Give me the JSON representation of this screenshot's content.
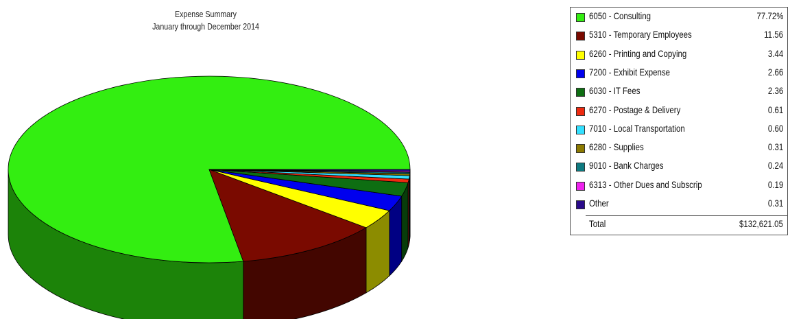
{
  "chart_data": {
    "type": "pie",
    "title": "Expense Summary",
    "subtitle": "January through December 2014",
    "slices": [
      {
        "label": "6050 - Consulting",
        "value_text": "77.72%",
        "value": 77.72,
        "color": "#33ee11"
      },
      {
        "label": "5310 - Temporary Employees",
        "value_text": "11.56",
        "value": 11.56,
        "color": "#7a0a00"
      },
      {
        "label": "6260 - Printing and Copying",
        "value_text": "3.44",
        "value": 3.44,
        "color": "#ffff00"
      },
      {
        "label": "7200 - Exhibit Expense",
        "value_text": "2.66",
        "value": 2.66,
        "color": "#0000ee"
      },
      {
        "label": "6030 - IT Fees",
        "value_text": "2.36",
        "value": 2.36,
        "color": "#0e6e12"
      },
      {
        "label": "6270 - Postage & Delivery",
        "value_text": "0.61",
        "value": 0.61,
        "color": "#ee2a10"
      },
      {
        "label": "7010 - Local Transportation",
        "value_text": "0.60",
        "value": 0.6,
        "color": "#33e0ff"
      },
      {
        "label": "6280 - Supplies",
        "value_text": "0.31",
        "value": 0.31,
        "color": "#8c7a00"
      },
      {
        "label": "9010 - Bank Charges",
        "value_text": "0.24",
        "value": 0.24,
        "color": "#0e7a80"
      },
      {
        "label": "6313 - Other Dues and Subscrip",
        "value_text": "0.19",
        "value": 0.19,
        "color": "#ee22ee"
      },
      {
        "label": "Other",
        "value_text": "0.31",
        "value": 0.31,
        "color": "#2a0a8a"
      }
    ],
    "total_label": "Total",
    "total_value": "$132,621.05",
    "legend_position": "right"
  }
}
